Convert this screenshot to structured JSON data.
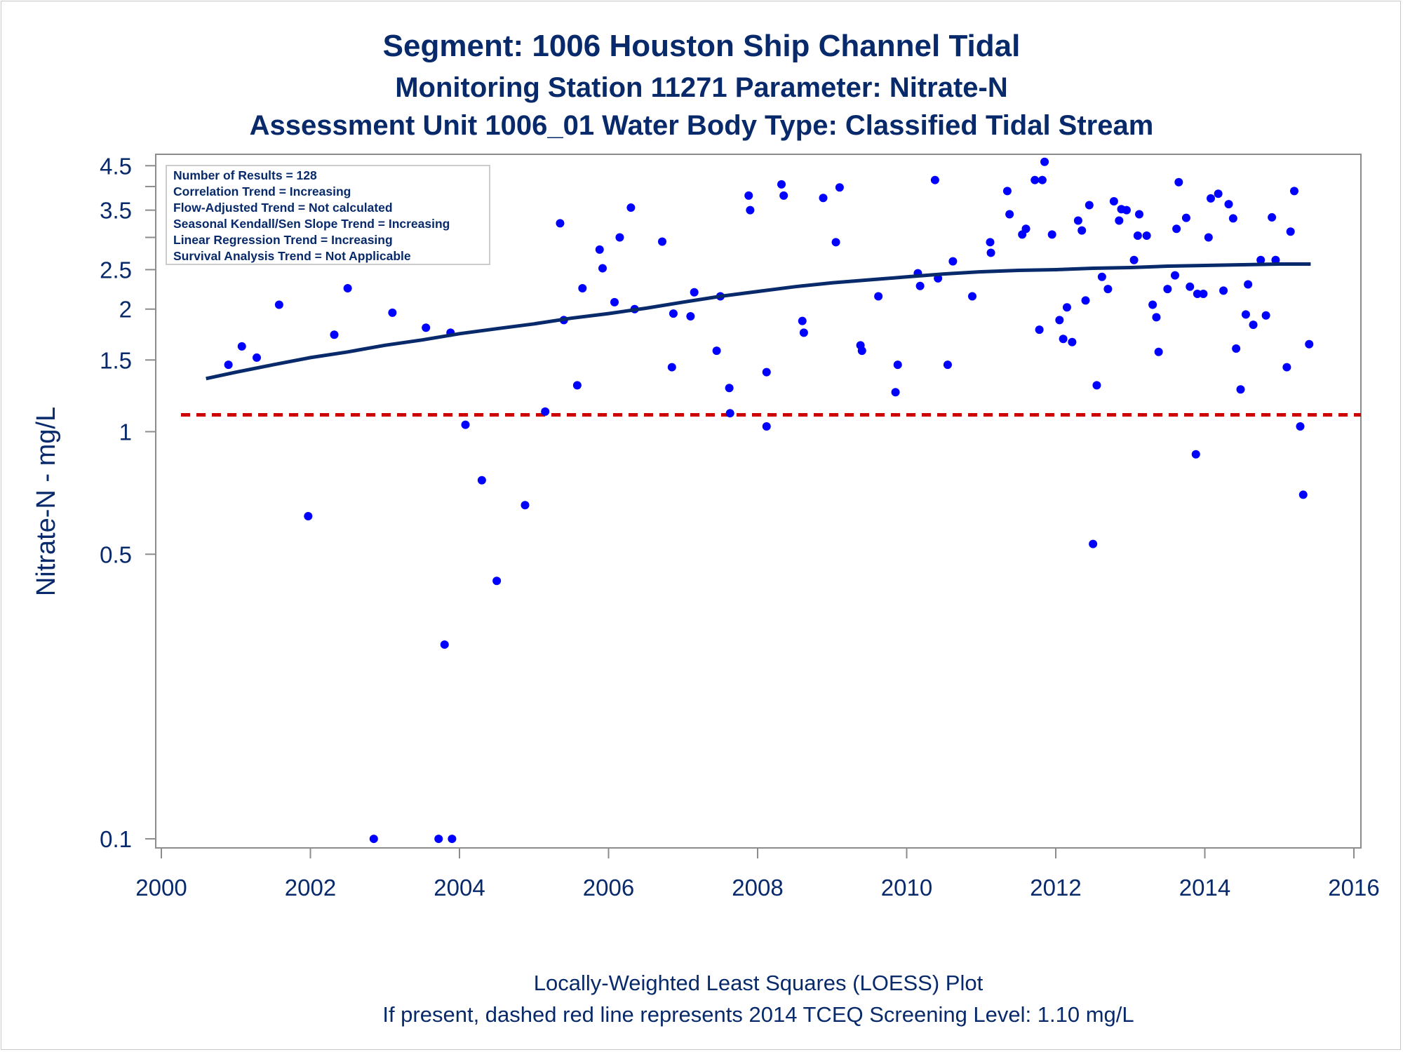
{
  "titles": {
    "line1": "Segment: 1006  Houston Ship Channel Tidal",
    "line2": "Monitoring Station 11271 Parameter: Nitrate-N",
    "line3": "Assessment Unit 1006_01   Water Body Type: Classified Tidal Stream"
  },
  "footnotes": {
    "line1": "Locally-Weighted Least Squares (LOESS) Plot",
    "line2": "If present, dashed red line represents 2014 TCEQ Screening Level: 1.10 mg/L"
  },
  "info_box": [
    "Number of Results = 128",
    "Correlation Trend = Increasing",
    "Flow-Adjusted Trend = Not calculated",
    "Seasonal Kendall/Sen Slope Trend = Increasing",
    "Linear Regression Trend = Increasing",
    "Survival Analysis Trend = Not Applicable"
  ],
  "colors": {
    "text": "#082a6b",
    "points": "#0000ff",
    "loess": "#082a6b",
    "screening": "#cc0000",
    "axis": "#8c8c8c"
  },
  "chart_data": {
    "type": "scatter",
    "ylabel": "Nitrate-N - mg/L",
    "xlabel": "",
    "yscale": "log",
    "xlim": [
      2000,
      2016
    ],
    "ylim": [
      0.095,
      4.8
    ],
    "xticks": [
      "2000",
      "2002",
      "2004",
      "2006",
      "2008",
      "2010",
      "2012",
      "2014",
      "2016"
    ],
    "yticks": [
      {
        "value": 0.1,
        "label": "0.1"
      },
      {
        "value": 0.5,
        "label": "0.5"
      },
      {
        "value": 1,
        "label": "1"
      },
      {
        "value": 1.5,
        "label": "1.5"
      },
      {
        "value": 2,
        "label": "2"
      },
      {
        "value": 2.5,
        "label": "2.5"
      },
      {
        "value": 3,
        "label": ""
      },
      {
        "value": 3.5,
        "label": "3.5"
      },
      {
        "value": 4,
        "label": ""
      },
      {
        "value": 4.5,
        "label": "4.5"
      }
    ],
    "screening_level": 1.1,
    "points": [
      [
        2000.55,
        2.85
      ],
      [
        2000.9,
        1.46
      ],
      [
        2001.08,
        1.62
      ],
      [
        2001.28,
        1.52
      ],
      [
        2001.58,
        2.05
      ],
      [
        2001.97,
        0.62
      ],
      [
        2002.1,
        3.6
      ],
      [
        2002.32,
        1.73
      ],
      [
        2002.5,
        2.25
      ],
      [
        2002.85,
        0.1
      ],
      [
        2003.1,
        1.96
      ],
      [
        2003.35,
        2.75
      ],
      [
        2003.55,
        1.8
      ],
      [
        2003.72,
        0.1
      ],
      [
        2003.8,
        0.3
      ],
      [
        2003.9,
        0.1
      ],
      [
        2003.88,
        1.75
      ],
      [
        2004.08,
        1.04
      ],
      [
        2004.3,
        0.76
      ],
      [
        2004.5,
        0.43
      ],
      [
        2004.88,
        0.66
      ],
      [
        2005.15,
        1.12
      ],
      [
        2005.35,
        3.25
      ],
      [
        2005.4,
        1.88
      ],
      [
        2005.58,
        1.3
      ],
      [
        2005.65,
        2.25
      ],
      [
        2005.88,
        2.8
      ],
      [
        2005.92,
        2.52
      ],
      [
        2006.08,
        2.08
      ],
      [
        2006.15,
        3.0
      ],
      [
        2006.3,
        3.55
      ],
      [
        2006.35,
        2.0
      ],
      [
        2006.72,
        2.93
      ],
      [
        2006.85,
        1.44
      ],
      [
        2006.87,
        1.95
      ],
      [
        2007.1,
        1.92
      ],
      [
        2007.15,
        2.2
      ],
      [
        2007.45,
        1.58
      ],
      [
        2007.5,
        2.15
      ],
      [
        2007.62,
        1.28
      ],
      [
        2007.63,
        1.11
      ],
      [
        2007.88,
        3.8
      ],
      [
        2007.9,
        3.5
      ],
      [
        2008.12,
        1.4
      ],
      [
        2008.12,
        1.03
      ],
      [
        2008.32,
        4.05
      ],
      [
        2008.35,
        3.8
      ],
      [
        2008.6,
        1.87
      ],
      [
        2008.62,
        1.75
      ],
      [
        2008.88,
        3.75
      ],
      [
        2009.05,
        2.92
      ],
      [
        2009.1,
        3.98
      ],
      [
        2009.38,
        1.63
      ],
      [
        2009.4,
        1.58
      ],
      [
        2009.62,
        2.15
      ],
      [
        2009.85,
        1.25
      ],
      [
        2009.88,
        1.46
      ],
      [
        2010.15,
        2.45
      ],
      [
        2010.18,
        2.28
      ],
      [
        2010.38,
        4.15
      ],
      [
        2010.42,
        2.38
      ],
      [
        2010.55,
        1.46
      ],
      [
        2010.62,
        2.62
      ],
      [
        2010.88,
        2.15
      ],
      [
        2011.12,
        2.92
      ],
      [
        2011.13,
        2.75
      ],
      [
        2011.35,
        3.9
      ],
      [
        2011.38,
        3.42
      ],
      [
        2011.55,
        3.05
      ],
      [
        2011.6,
        3.15
      ],
      [
        2011.72,
        4.15
      ],
      [
        2011.78,
        1.78
      ],
      [
        2011.82,
        4.15
      ],
      [
        2011.85,
        4.6
      ],
      [
        2011.95,
        3.05
      ],
      [
        2012.05,
        1.88
      ],
      [
        2012.1,
        1.69
      ],
      [
        2012.15,
        2.02
      ],
      [
        2012.22,
        1.66
      ],
      [
        2012.3,
        3.3
      ],
      [
        2012.35,
        3.12
      ],
      [
        2012.4,
        2.1
      ],
      [
        2012.45,
        3.6
      ],
      [
        2012.5,
        0.53
      ],
      [
        2012.55,
        1.3
      ],
      [
        2012.62,
        2.4
      ],
      [
        2012.7,
        2.24
      ],
      [
        2012.78,
        3.68
      ],
      [
        2012.85,
        3.3
      ],
      [
        2012.88,
        3.52
      ],
      [
        2012.95,
        3.5
      ],
      [
        2013.05,
        2.64
      ],
      [
        2013.1,
        3.03
      ],
      [
        2013.12,
        3.42
      ],
      [
        2013.22,
        3.03
      ],
      [
        2013.3,
        2.05
      ],
      [
        2013.35,
        1.91
      ],
      [
        2013.38,
        1.57
      ],
      [
        2013.5,
        2.24
      ],
      [
        2013.6,
        2.42
      ],
      [
        2013.62,
        3.15
      ],
      [
        2013.65,
        4.1
      ],
      [
        2013.75,
        3.35
      ],
      [
        2013.8,
        2.27
      ],
      [
        2013.88,
        0.88
      ],
      [
        2013.9,
        2.18
      ],
      [
        2013.98,
        2.18
      ],
      [
        2014.05,
        3.0
      ],
      [
        2014.08,
        3.74
      ],
      [
        2014.18,
        3.84
      ],
      [
        2014.25,
        2.22
      ],
      [
        2014.32,
        3.62
      ],
      [
        2014.38,
        3.34
      ],
      [
        2014.42,
        1.6
      ],
      [
        2014.48,
        1.27
      ],
      [
        2014.55,
        1.94
      ],
      [
        2014.58,
        2.3
      ],
      [
        2014.65,
        1.83
      ],
      [
        2014.75,
        2.64
      ],
      [
        2014.82,
        1.93
      ],
      [
        2014.9,
        3.36
      ],
      [
        2014.95,
        2.64
      ],
      [
        2015.1,
        1.44
      ],
      [
        2015.15,
        3.1
      ],
      [
        2015.2,
        3.9
      ],
      [
        2015.28,
        1.03
      ],
      [
        2015.32,
        0.7
      ],
      [
        2015.4,
        1.64
      ]
    ],
    "loess": [
      [
        2000.6,
        1.35
      ],
      [
        2001.0,
        1.4
      ],
      [
        2001.5,
        1.46
      ],
      [
        2002.0,
        1.52
      ],
      [
        2002.5,
        1.57
      ],
      [
        2003.0,
        1.63
      ],
      [
        2003.5,
        1.68
      ],
      [
        2004.0,
        1.74
      ],
      [
        2004.5,
        1.79
      ],
      [
        2005.0,
        1.84
      ],
      [
        2005.5,
        1.9
      ],
      [
        2006.0,
        1.95
      ],
      [
        2006.5,
        2.01
      ],
      [
        2007.0,
        2.08
      ],
      [
        2007.5,
        2.15
      ],
      [
        2008.0,
        2.21
      ],
      [
        2008.5,
        2.27
      ],
      [
        2009.0,
        2.32
      ],
      [
        2009.5,
        2.36
      ],
      [
        2010.0,
        2.4
      ],
      [
        2010.5,
        2.44
      ],
      [
        2011.0,
        2.47
      ],
      [
        2011.5,
        2.49
      ],
      [
        2012.0,
        2.5
      ],
      [
        2012.5,
        2.52
      ],
      [
        2013.0,
        2.53
      ],
      [
        2013.5,
        2.55
      ],
      [
        2014.0,
        2.56
      ],
      [
        2014.5,
        2.57
      ],
      [
        2015.0,
        2.58
      ],
      [
        2015.42,
        2.58
      ]
    ]
  }
}
